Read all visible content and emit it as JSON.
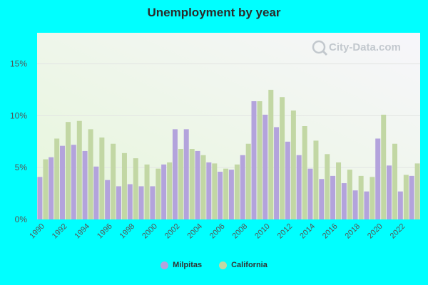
{
  "chart_data": {
    "type": "bar",
    "title": "Unemployment by year",
    "xlabel": "",
    "ylabel": "",
    "ylim": [
      0,
      18
    ],
    "y_ticks": [
      "0%",
      "5%",
      "10%",
      "15%"
    ],
    "y_tick_values": [
      0,
      5,
      10,
      15
    ],
    "x_tick_labels": [
      "1990",
      "1992",
      "1994",
      "1996",
      "1998",
      "2000",
      "2002",
      "2004",
      "2006",
      "2008",
      "2010",
      "2012",
      "2014",
      "2016",
      "2018",
      "2020",
      "2022"
    ],
    "categories": [
      "1990",
      "1991",
      "1992",
      "1993",
      "1994",
      "1995",
      "1996",
      "1997",
      "1998",
      "1999",
      "2000",
      "2001",
      "2002",
      "2003",
      "2004",
      "2005",
      "2006",
      "2007",
      "2008",
      "2009",
      "2010",
      "2011",
      "2012",
      "2013",
      "2014",
      "2015",
      "2016",
      "2017",
      "2018",
      "2019",
      "2020",
      "2021",
      "2022",
      "2023"
    ],
    "series": [
      {
        "name": "Milpitas",
        "color": "#b3a3dc",
        "values": [
          4.1,
          6.0,
          7.1,
          7.2,
          6.6,
          5.1,
          3.8,
          3.2,
          3.4,
          3.2,
          3.2,
          5.3,
          8.7,
          8.7,
          6.6,
          5.5,
          4.6,
          4.8,
          6.2,
          11.4,
          10.1,
          8.9,
          7.5,
          6.2,
          4.9,
          3.9,
          4.2,
          3.5,
          2.8,
          2.7,
          7.8,
          5.2,
          2.7,
          4.2
        ]
      },
      {
        "name": "California",
        "color": "#c2d7a4",
        "values": [
          5.8,
          7.8,
          9.4,
          9.5,
          8.7,
          7.9,
          7.3,
          6.4,
          5.9,
          5.3,
          4.9,
          5.5,
          6.8,
          6.8,
          6.2,
          5.4,
          4.9,
          5.3,
          7.3,
          11.4,
          12.5,
          11.8,
          10.5,
          9.0,
          7.6,
          6.3,
          5.5,
          4.8,
          4.2,
          4.1,
          10.1,
          7.3,
          4.3,
          5.4
        ]
      }
    ],
    "grid": true,
    "legend_position": "bottom-center"
  },
  "watermark": "City-Data.com"
}
